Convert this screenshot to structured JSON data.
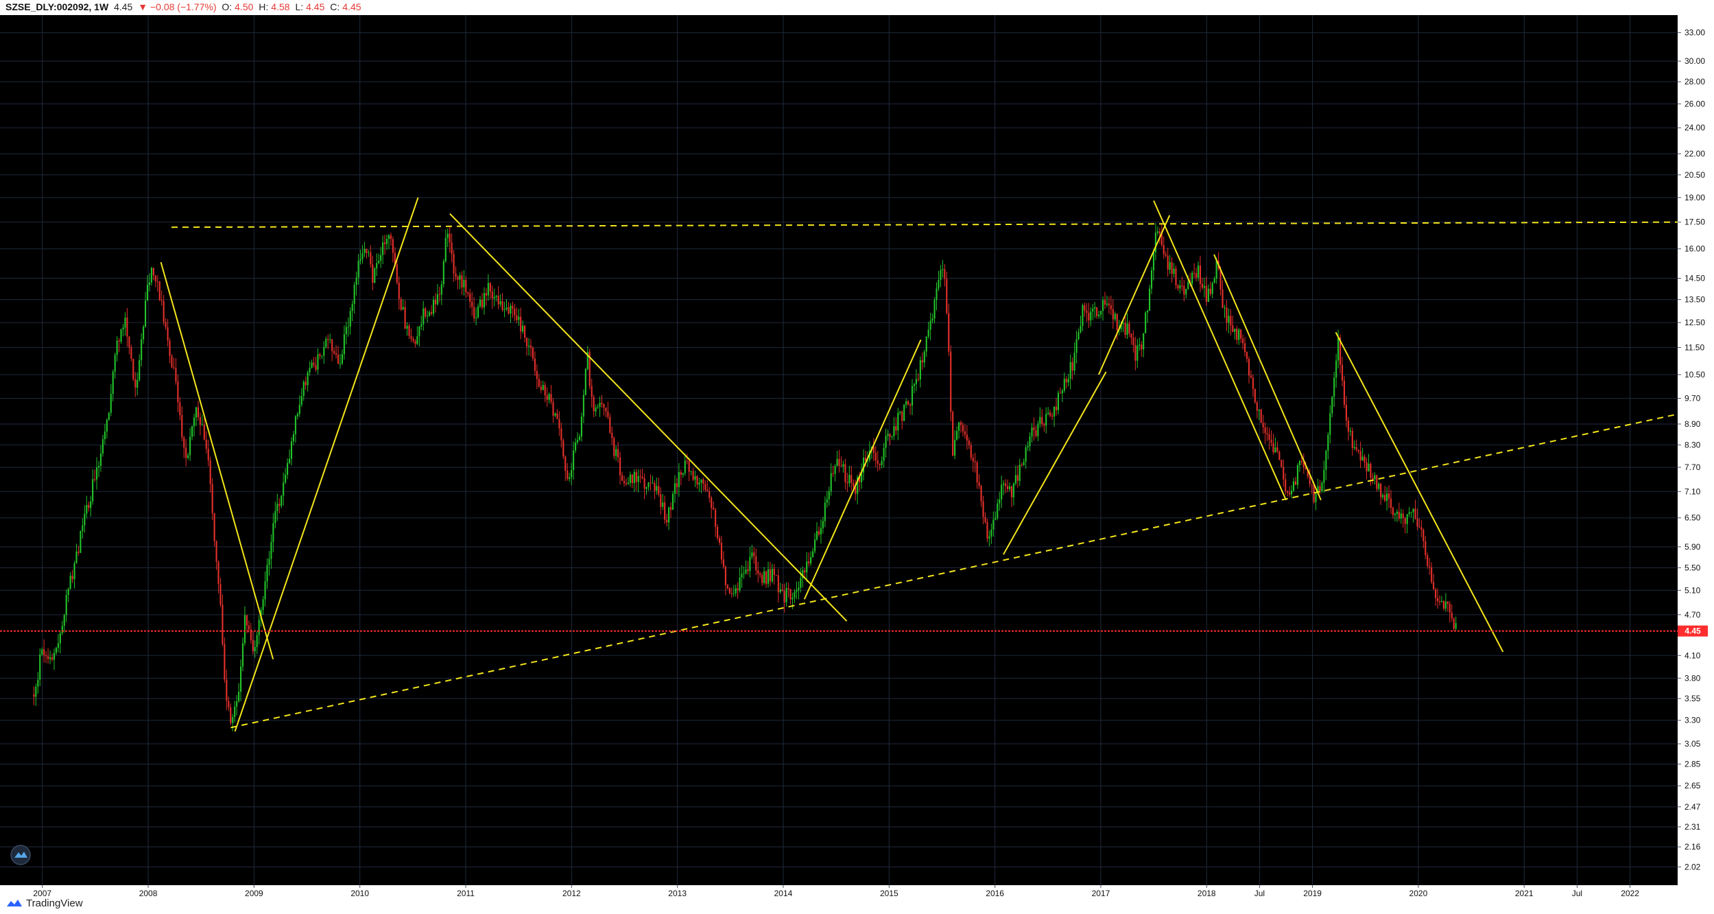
{
  "header": {
    "symbol": "SZSE_DLY:002092, 1W",
    "last": "4.45",
    "change": "▼ −0.08 (−1.77%)",
    "o_label": "O:",
    "o_value": "4.50",
    "h_label": "H:",
    "h_value": "4.58",
    "l_label": "L:",
    "l_value": "4.45",
    "c_label": "C:",
    "c_value": "4.45"
  },
  "footer": {
    "brand": "TradingView"
  },
  "colors": {
    "background": "#000000",
    "grid": "#1f2a3d",
    "up": "#22c32a",
    "down": "#e5302b",
    "trendline": "#f5e61b",
    "price_line": "#ff2d2d",
    "axis_text": "#111111"
  },
  "chart_data": {
    "type": "candlestick",
    "scale": "log",
    "ylim": [
      1.9,
      35
    ],
    "xlim": [
      2006.6,
      2022.45
    ],
    "yticks": [
      2.02,
      2.16,
      2.31,
      2.47,
      2.65,
      2.85,
      3.05,
      3.3,
      3.55,
      3.8,
      4.1,
      4.7,
      5.1,
      5.5,
      5.9,
      6.5,
      7.1,
      7.7,
      8.3,
      8.9,
      9.7,
      10.5,
      11.5,
      12.5,
      13.5,
      14.5,
      16.0,
      17.5,
      19.0,
      20.5,
      22.0,
      24.0,
      26.0,
      28.0,
      30.0,
      33.0
    ],
    "ytick_labels": [
      "2.02",
      "2.16",
      "2.31",
      "2.47",
      "2.65",
      "2.85",
      "3.05",
      "3.30",
      "3.55",
      "3.80",
      "4.10",
      "4.70",
      "5.10",
      "5.50",
      "5.90",
      "6.50",
      "7.10",
      "7.70",
      "8.30",
      "8.90",
      "9.70",
      "10.50",
      "11.50",
      "12.50",
      "13.50",
      "14.50",
      "16.00",
      "17.50",
      "19.00",
      "20.50",
      "22.00",
      "24.00",
      "26.00",
      "28.00",
      "30.00",
      "33.00"
    ],
    "xticks": [
      2007,
      2008,
      2009,
      2010,
      2011,
      2012,
      2013,
      2014,
      2015,
      2016,
      2017,
      2018,
      2018.5,
      2019,
      2020,
      2021,
      2021.5,
      2022
    ],
    "xtick_labels": [
      "2007",
      "2008",
      "2009",
      "2010",
      "2011",
      "2012",
      "2013",
      "2014",
      "2015",
      "2016",
      "2017",
      "2018",
      "Jul",
      "2019",
      "2020",
      "2021",
      "Jul",
      "2022"
    ],
    "price_line": {
      "value": 4.45,
      "label": "4.45"
    },
    "anchors": [
      [
        2006.92,
        3.6
      ],
      [
        2007.0,
        4.2
      ],
      [
        2007.1,
        4.0
      ],
      [
        2007.2,
        4.7
      ],
      [
        2007.35,
        6.0
      ],
      [
        2007.5,
        7.5
      ],
      [
        2007.6,
        8.6
      ],
      [
        2007.7,
        11.5
      ],
      [
        2007.78,
        12.5
      ],
      [
        2007.88,
        10.0
      ],
      [
        2008.0,
        14.5
      ],
      [
        2008.05,
        15.0
      ],
      [
        2008.1,
        13.8
      ],
      [
        2008.2,
        11.5
      ],
      [
        2008.28,
        9.8
      ],
      [
        2008.35,
        7.8
      ],
      [
        2008.45,
        9.5
      ],
      [
        2008.55,
        8.3
      ],
      [
        2008.6,
        6.8
      ],
      [
        2008.68,
        5.0
      ],
      [
        2008.72,
        3.8
      ],
      [
        2008.78,
        3.2
      ],
      [
        2008.85,
        3.6
      ],
      [
        2008.92,
        4.7
      ],
      [
        2009.0,
        4.2
      ],
      [
        2009.1,
        5.2
      ],
      [
        2009.2,
        6.5
      ],
      [
        2009.3,
        7.5
      ],
      [
        2009.4,
        9.2
      ],
      [
        2009.5,
        10.5
      ],
      [
        2009.6,
        11.0
      ],
      [
        2009.7,
        12.0
      ],
      [
        2009.8,
        10.8
      ],
      [
        2009.9,
        12.8
      ],
      [
        2010.0,
        15.5
      ],
      [
        2010.05,
        16.5
      ],
      [
        2010.12,
        14.3
      ],
      [
        2010.2,
        15.8
      ],
      [
        2010.28,
        16.8
      ],
      [
        2010.35,
        14.3
      ],
      [
        2010.4,
        13.0
      ],
      [
        2010.45,
        12.2
      ],
      [
        2010.5,
        11.6
      ],
      [
        2010.57,
        12.5
      ],
      [
        2010.62,
        13.0
      ],
      [
        2010.7,
        13.2
      ],
      [
        2010.78,
        14.5
      ],
      [
        2010.82,
        17.2
      ],
      [
        2010.88,
        15.0
      ],
      [
        2010.95,
        14.5
      ],
      [
        2011.0,
        14.2
      ],
      [
        2011.05,
        13.1
      ],
      [
        2011.1,
        12.8
      ],
      [
        2011.2,
        14.0
      ],
      [
        2011.3,
        13.6
      ],
      [
        2011.4,
        13.0
      ],
      [
        2011.5,
        12.6
      ],
      [
        2011.6,
        11.6
      ],
      [
        2011.68,
        10.2
      ],
      [
        2011.78,
        9.8
      ],
      [
        2011.88,
        8.8
      ],
      [
        2011.95,
        7.3
      ],
      [
        2012.0,
        7.8
      ],
      [
        2012.08,
        8.7
      ],
      [
        2012.15,
        11.2
      ],
      [
        2012.2,
        9.2
      ],
      [
        2012.3,
        9.5
      ],
      [
        2012.4,
        8.2
      ],
      [
        2012.5,
        7.3
      ],
      [
        2012.6,
        7.5
      ],
      [
        2012.7,
        7.3
      ],
      [
        2012.8,
        7.1
      ],
      [
        2012.9,
        6.5
      ],
      [
        2013.0,
        7.4
      ],
      [
        2013.1,
        7.8
      ],
      [
        2013.2,
        7.3
      ],
      [
        2013.3,
        7.0
      ],
      [
        2013.38,
        6.2
      ],
      [
        2013.45,
        5.2
      ],
      [
        2013.52,
        5.0
      ],
      [
        2013.6,
        5.3
      ],
      [
        2013.7,
        5.7
      ],
      [
        2013.8,
        5.3
      ],
      [
        2013.9,
        5.4
      ],
      [
        2014.0,
        5.0
      ],
      [
        2014.1,
        5.1
      ],
      [
        2014.2,
        5.4
      ],
      [
        2014.3,
        6.0
      ],
      [
        2014.38,
        6.5
      ],
      [
        2014.45,
        7.5
      ],
      [
        2014.52,
        8.0
      ],
      [
        2014.6,
        7.4
      ],
      [
        2014.68,
        7.2
      ],
      [
        2014.75,
        7.7
      ],
      [
        2014.82,
        8.2
      ],
      [
        2014.9,
        7.8
      ],
      [
        2014.98,
        8.5
      ],
      [
        2015.08,
        9.0
      ],
      [
        2015.18,
        9.5
      ],
      [
        2015.28,
        10.5
      ],
      [
        2015.35,
        12.0
      ],
      [
        2015.42,
        13.0
      ],
      [
        2015.48,
        14.5
      ],
      [
        2015.52,
        15.0
      ],
      [
        2015.56,
        11.5
      ],
      [
        2015.6,
        8.0
      ],
      [
        2015.66,
        9.0
      ],
      [
        2015.72,
        8.4
      ],
      [
        2015.78,
        8.1
      ],
      [
        2015.85,
        7.2
      ],
      [
        2015.9,
        6.3
      ],
      [
        2015.95,
        6.1
      ],
      [
        2016.0,
        6.6
      ],
      [
        2016.08,
        7.4
      ],
      [
        2016.15,
        7.0
      ],
      [
        2016.25,
        7.8
      ],
      [
        2016.35,
        8.6
      ],
      [
        2016.45,
        9.0
      ],
      [
        2016.55,
        9.2
      ],
      [
        2016.65,
        10.2
      ],
      [
        2016.75,
        11.0
      ],
      [
        2016.82,
        13.0
      ],
      [
        2016.9,
        12.8
      ],
      [
        2017.0,
        13.2
      ],
      [
        2017.08,
        13.3
      ],
      [
        2017.15,
        12.4
      ],
      [
        2017.25,
        12.2
      ],
      [
        2017.32,
        11.2
      ],
      [
        2017.38,
        11.5
      ],
      [
        2017.45,
        13.4
      ],
      [
        2017.5,
        15.8
      ],
      [
        2017.54,
        17.5
      ],
      [
        2017.58,
        16.2
      ],
      [
        2017.62,
        15.2
      ],
      [
        2017.7,
        14.6
      ],
      [
        2017.78,
        13.8
      ],
      [
        2017.85,
        14.5
      ],
      [
        2017.92,
        14.9
      ],
      [
        2018.0,
        13.5
      ],
      [
        2018.05,
        14.2
      ],
      [
        2018.1,
        15.2
      ],
      [
        2018.15,
        13.2
      ],
      [
        2018.2,
        12.6
      ],
      [
        2018.3,
        12.0
      ],
      [
        2018.38,
        11.0
      ],
      [
        2018.45,
        9.8
      ],
      [
        2018.52,
        9.0
      ],
      [
        2018.6,
        8.4
      ],
      [
        2018.68,
        7.9
      ],
      [
        2018.75,
        7.2
      ],
      [
        2018.8,
        7.0
      ],
      [
        2018.88,
        7.8
      ],
      [
        2018.95,
        7.4
      ],
      [
        2019.02,
        6.9
      ],
      [
        2019.08,
        7.2
      ],
      [
        2019.15,
        8.6
      ],
      [
        2019.2,
        10.0
      ],
      [
        2019.24,
        11.9
      ],
      [
        2019.28,
        10.2
      ],
      [
        2019.33,
        8.8
      ],
      [
        2019.4,
        8.2
      ],
      [
        2019.48,
        7.8
      ],
      [
        2019.55,
        7.6
      ],
      [
        2019.62,
        7.2
      ],
      [
        2019.7,
        7.0
      ],
      [
        2019.78,
        6.6
      ],
      [
        2019.85,
        6.4
      ],
      [
        2019.9,
        6.6
      ],
      [
        2019.95,
        6.8
      ],
      [
        2020.0,
        6.4
      ],
      [
        2020.05,
        5.9
      ],
      [
        2020.12,
        5.3
      ],
      [
        2020.18,
        4.9
      ],
      [
        2020.22,
        4.9
      ],
      [
        2020.28,
        4.8
      ],
      [
        2020.32,
        4.6
      ],
      [
        2020.36,
        4.45
      ]
    ],
    "trendlines": [
      {
        "style": "solid",
        "p1": [
          2008.12,
          15.3
        ],
        "p2": [
          2009.18,
          4.05
        ]
      },
      {
        "style": "solid",
        "p1": [
          2008.82,
          3.18
        ],
        "p2": [
          2010.55,
          19.0
        ]
      },
      {
        "style": "solid",
        "p1": [
          2010.85,
          18.0
        ],
        "p2": [
          2014.6,
          4.6
        ]
      },
      {
        "style": "solid",
        "p1": [
          2014.2,
          4.95
        ],
        "p2": [
          2015.3,
          11.8
        ]
      },
      {
        "style": "solid",
        "p1": [
          2016.08,
          5.75
        ],
        "p2": [
          2017.05,
          10.6
        ]
      },
      {
        "style": "solid",
        "p1": [
          2016.98,
          10.5
        ],
        "p2": [
          2017.65,
          17.9
        ]
      },
      {
        "style": "solid",
        "p1": [
          2017.5,
          18.8
        ],
        "p2": [
          2018.75,
          6.9
        ]
      },
      {
        "style": "solid",
        "p1": [
          2018.07,
          15.7
        ],
        "p2": [
          2019.08,
          6.9
        ]
      },
      {
        "style": "solid",
        "p1": [
          2019.22,
          12.1
        ],
        "p2": [
          2020.8,
          4.15
        ]
      },
      {
        "style": "dashed",
        "p1": [
          2008.78,
          3.22
        ],
        "p2": [
          2022.45,
          9.2
        ]
      },
      {
        "style": "dashed",
        "p1": [
          2008.22,
          17.2
        ],
        "p2": [
          2022.45,
          17.5
        ]
      }
    ]
  }
}
